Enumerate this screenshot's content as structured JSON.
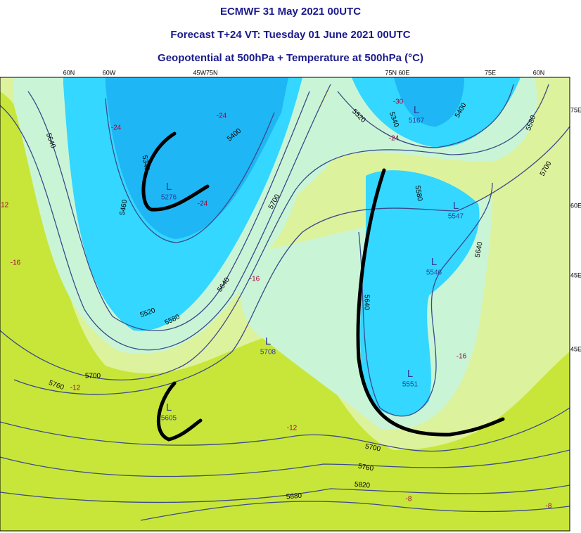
{
  "header": {
    "title": "ECMWF 31 May 2021 00UTC",
    "subtitle": "Forecast T+24 VT: Tuesday 01 June 2021 00UTC",
    "description": "Geopotential at 500hPa + Temperature at 500hPa (°C)"
  },
  "map": {
    "top_labels": [
      "60N",
      "60W",
      "45W75N",
      "75N 60E",
      "75E",
      "60N"
    ],
    "right_labels": [
      "75E",
      "60E",
      "45E",
      "45E"
    ],
    "lows": [
      {
        "symbol": "L",
        "value": "5276"
      },
      {
        "symbol": "L",
        "value": "5167"
      },
      {
        "symbol": "L",
        "value": "5547"
      },
      {
        "symbol": "L",
        "value": "5546"
      },
      {
        "symbol": "L",
        "value": "5708"
      },
      {
        "symbol": "L",
        "value": "5551"
      },
      {
        "symbol": "L",
        "value": "5605"
      }
    ],
    "contour_labels": [
      "5640",
      "5460",
      "5340",
      "5400",
      "5520",
      "5580",
      "5640",
      "5700",
      "5760",
      "5700",
      "5520",
      "5340",
      "5400",
      "5580",
      "5700",
      "5580",
      "5640",
      "5640",
      "5700",
      "5760",
      "5820",
      "5880"
    ],
    "temperature_labels": [
      "-24",
      "-24",
      "-24",
      "-24",
      "-30",
      "-12",
      "-16",
      "-16",
      "-12",
      "-12",
      "-16",
      "-8",
      "-8"
    ]
  }
}
